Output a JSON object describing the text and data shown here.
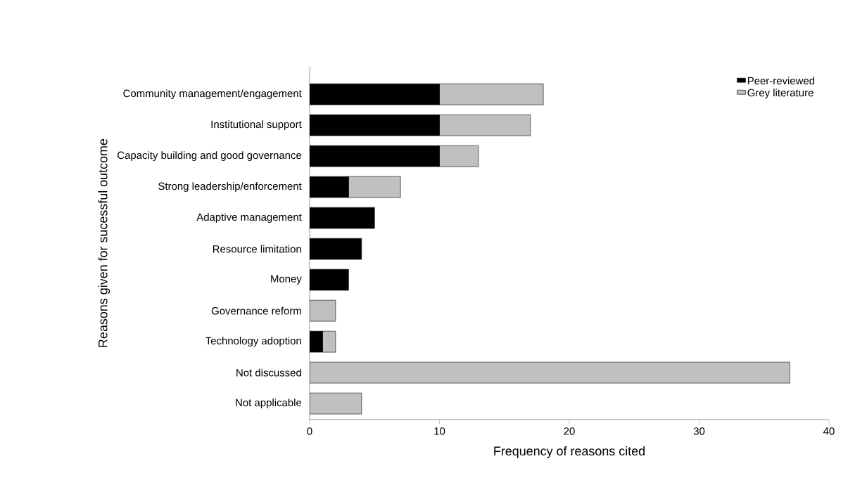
{
  "chart_data": {
    "type": "bar",
    "orientation": "horizontal",
    "stacked": true,
    "xlabel": "Frequency of reasons cited",
    "ylabel": "Reasons given for sucessful outcome",
    "categories": [
      "Community management/engagement",
      "Institutional support",
      "Capacity building and good governance",
      "Strong leadership/enforcement",
      "Adaptive management",
      "Resource limitation",
      "Money",
      "Governance reform",
      "Technology adoption",
      "Not discussed",
      "Not applicable"
    ],
    "series": [
      {
        "name": "Peer-reviewed",
        "color": "#000000",
        "values": [
          10,
          10,
          10,
          3,
          5,
          4,
          3,
          0,
          1,
          0,
          0
        ]
      },
      {
        "name": "Grey literature",
        "color": "#c0c0c0",
        "values": [
          8,
          7,
          3,
          4,
          0,
          0,
          0,
          2,
          1,
          37,
          4
        ]
      }
    ],
    "xlim": [
      0,
      40
    ],
    "xticks": [
      0,
      10,
      20,
      30,
      40
    ],
    "grid": false,
    "legend": "top right"
  }
}
